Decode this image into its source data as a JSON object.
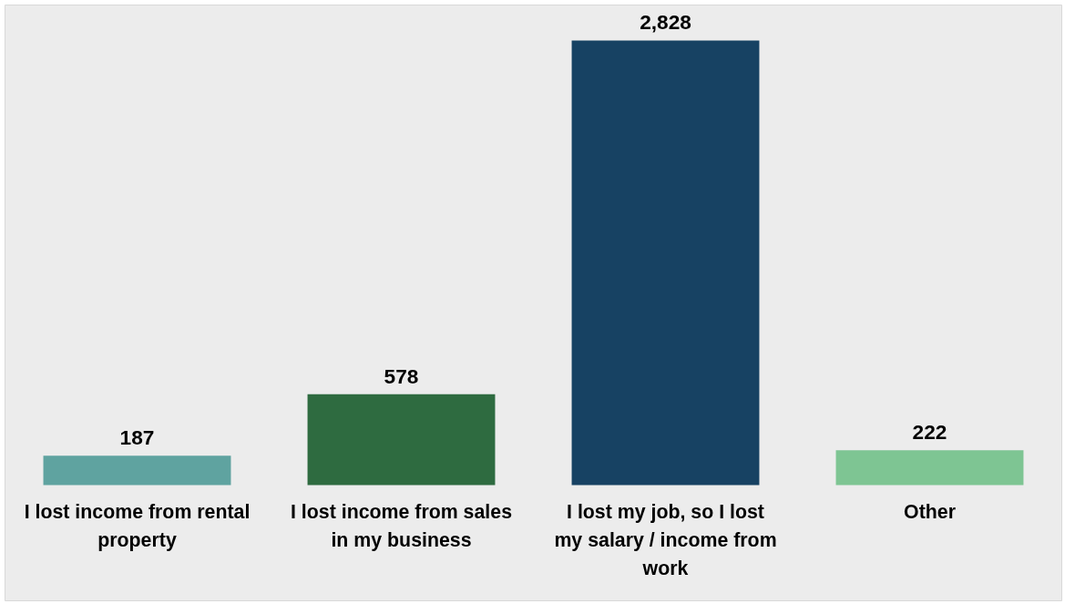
{
  "chart_data": {
    "type": "bar",
    "categories": [
      "I lost income from rental property",
      "I lost income from sales in my business",
      "I lost my job, so I lost my salary / income from work",
      "Other"
    ],
    "values": [
      187,
      578,
      2828,
      222
    ],
    "colors": [
      "#5fa3a0",
      "#2e6b40",
      "#174263",
      "#7ec593"
    ],
    "value_labels": [
      "187",
      "578",
      "2,828",
      "222"
    ],
    "grid": false
  }
}
